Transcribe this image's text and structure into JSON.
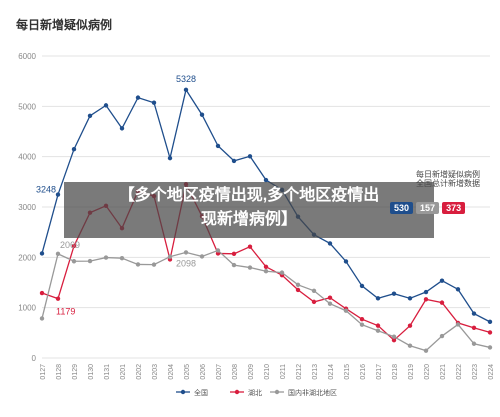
{
  "chart_data": {
    "type": "line",
    "title": "每日新增疑似病例",
    "categories": [
      "0127",
      "0128",
      "0129",
      "0130",
      "0131",
      "0201",
      "0202",
      "0203",
      "0204",
      "0205",
      "0206",
      "0207",
      "0208",
      "0209",
      "0210",
      "0211",
      "0212",
      "0213",
      "0214",
      "0215",
      "0216",
      "0217",
      "0218",
      "0219",
      "0220",
      "0221",
      "0222",
      "0223",
      "0224"
    ],
    "ylim": [
      0,
      6000
    ],
    "yticks": [
      0,
      1000,
      2000,
      3000,
      4000,
      5000,
      6000
    ],
    "grid": true,
    "legend_position": "bottom",
    "series": [
      {
        "name": "全国",
        "color": "#1f4e8c",
        "values": [
          2077,
          3248,
          4148,
          4812,
          5019,
          4562,
          5173,
          5072,
          3971,
          5328,
          4833,
          4214,
          3916,
          4008,
          3536,
          3342,
          2807,
          2450,
          2277,
          1918,
          1432,
          1185,
          1277,
          1185,
          1311,
          1536,
          1364,
          882,
          718
        ]
      },
      {
        "name": "湖北",
        "color": "#d81e3e",
        "values": [
          1291,
          1179,
          2226,
          2887,
          3024,
          2579,
          3314,
          3217,
          1958,
          3452,
          2815,
          2077,
          2070,
          2211,
          1812,
          1646,
          1353,
          1115,
          1198,
          979,
          771,
          643,
          354,
          641,
          1165,
          1100,
          697,
          599,
          508
        ]
      },
      {
        "name": "国内非湖北地区",
        "color": "#999999",
        "values": [
          786,
          2069,
          1922,
          1925,
          1995,
          1983,
          1859,
          1855,
          2013,
          2098,
          2018,
          2137,
          1846,
          1797,
          1724,
          1696,
          1454,
          1335,
          1079,
          939,
          661,
          542,
          423,
          244,
          146,
          436,
          667,
          283,
          210
        ]
      }
    ],
    "annotations": [
      {
        "text": "5328",
        "series": 0,
        "index": 9
      },
      {
        "text": "3248",
        "series": 0,
        "index": 1
      },
      {
        "text": "2069",
        "series": 2,
        "index": 1
      },
      {
        "text": "2098",
        "series": 2,
        "index": 9
      },
      {
        "text": "1179",
        "series": 1,
        "index": 1
      }
    ]
  },
  "overlay": {
    "headline_line1": "【多个地区疫情出现,多个地区疫情出",
    "headline_line2": "现新增病例】",
    "badge_caption_1": "每日新增疑似病例",
    "badge_caption_2": "全国总计新增数据",
    "badges": [
      {
        "text": "530",
        "color": "#1f4e8c"
      },
      {
        "text": "157",
        "color": "#999999"
      },
      {
        "text": "373",
        "color": "#d81e3e"
      }
    ]
  }
}
